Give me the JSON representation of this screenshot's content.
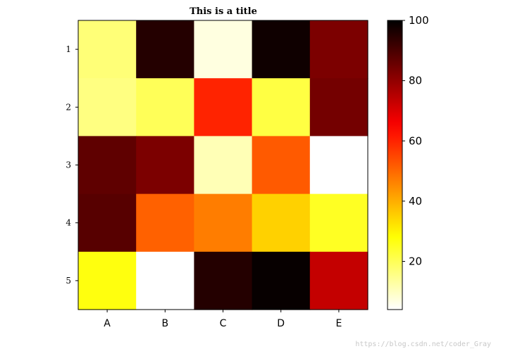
{
  "chart_data": {
    "type": "heatmap",
    "title": "This is a title",
    "x_categories": [
      "A",
      "B",
      "C",
      "D",
      "E"
    ],
    "y_categories": [
      "1",
      "2",
      "3",
      "4",
      "5"
    ],
    "values": [
      [
        17,
        95,
        7,
        98,
        83
      ],
      [
        16,
        20,
        60,
        22,
        84
      ],
      [
        87,
        83,
        11,
        52,
        4
      ],
      [
        88,
        51,
        47,
        35,
        25
      ],
      [
        27,
        4,
        95,
        99,
        73
      ]
    ],
    "colormap": "hot_r",
    "vmin": 4,
    "vmax": 100,
    "colorbar": {
      "ticks": [
        20,
        40,
        60,
        80,
        100
      ],
      "tick_labels": [
        "20",
        "40",
        "60",
        "80",
        "100"
      ],
      "position": "right"
    },
    "grid": false
  },
  "watermark": "https://blog.csdn.net/coder_Gray"
}
